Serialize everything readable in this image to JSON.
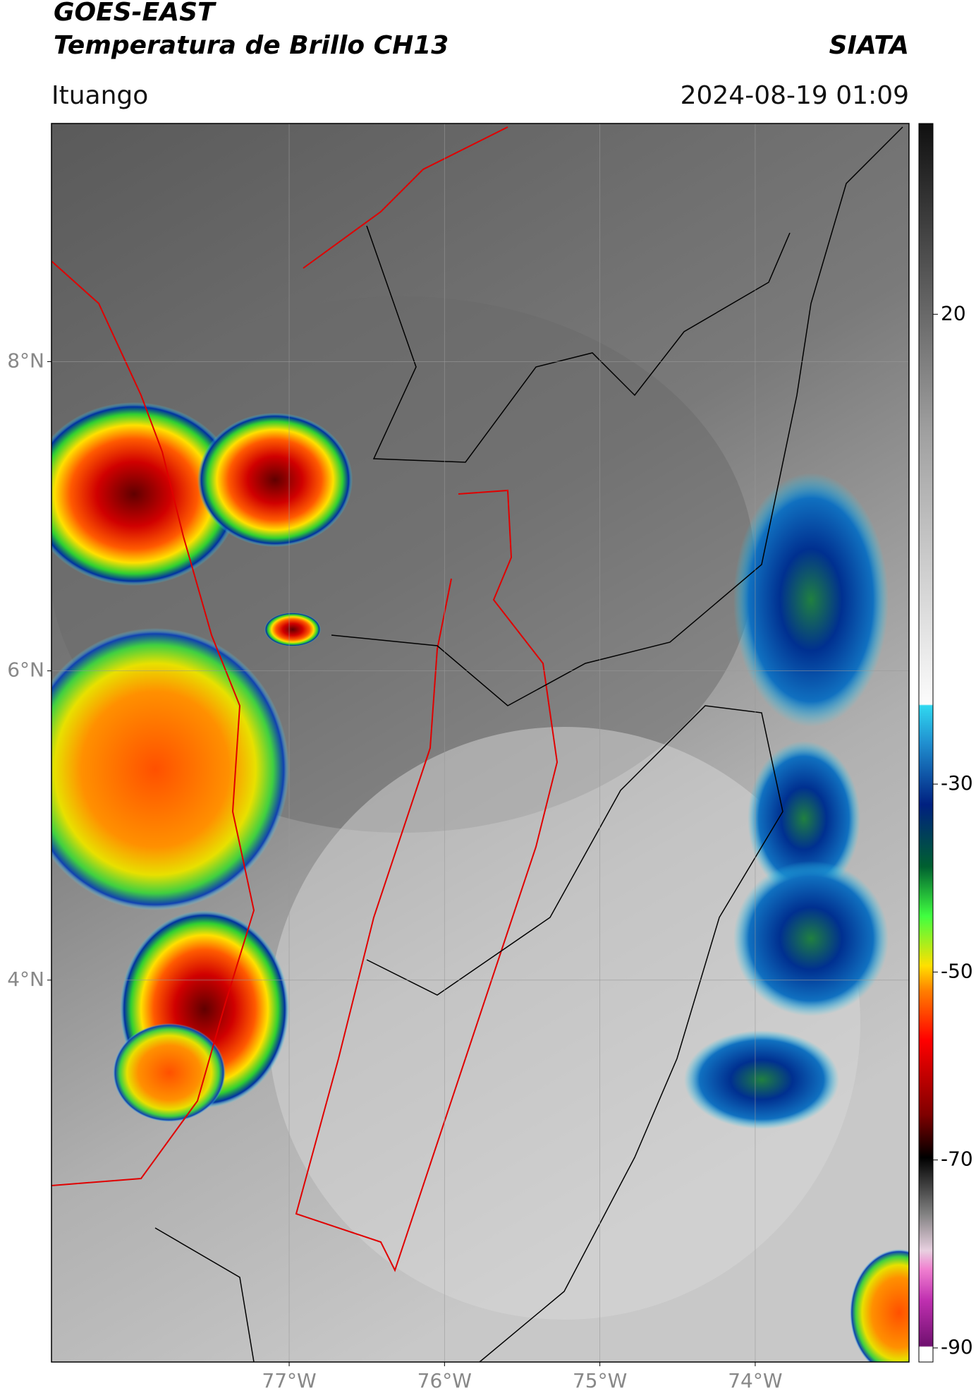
{
  "header": {
    "title": "GOES-EAST",
    "subtitle": "Temperatura de Brillo CH13",
    "brand": "SIATA",
    "location": "Ituango",
    "datetime": "2024-08-19 01:09"
  },
  "map": {
    "xlim": [
      -78.53,
      -73.01
    ],
    "ylim": [
      1.53,
      9.54
    ],
    "xticks": [
      {
        "value": -77,
        "label": "77°W"
      },
      {
        "value": -76,
        "label": "76°W"
      },
      {
        "value": -75,
        "label": "75°W"
      },
      {
        "value": -74,
        "label": "74°W"
      }
    ],
    "yticks": [
      {
        "value": 8,
        "label": "8°N"
      },
      {
        "value": 6,
        "label": "6°N"
      },
      {
        "value": 4,
        "label": "4°N"
      }
    ],
    "grid": true
  },
  "colorbar": {
    "lim": [
      -91.5,
      40.3
    ],
    "ticks": [
      20,
      -30,
      -50,
      -70,
      -90
    ]
  }
}
